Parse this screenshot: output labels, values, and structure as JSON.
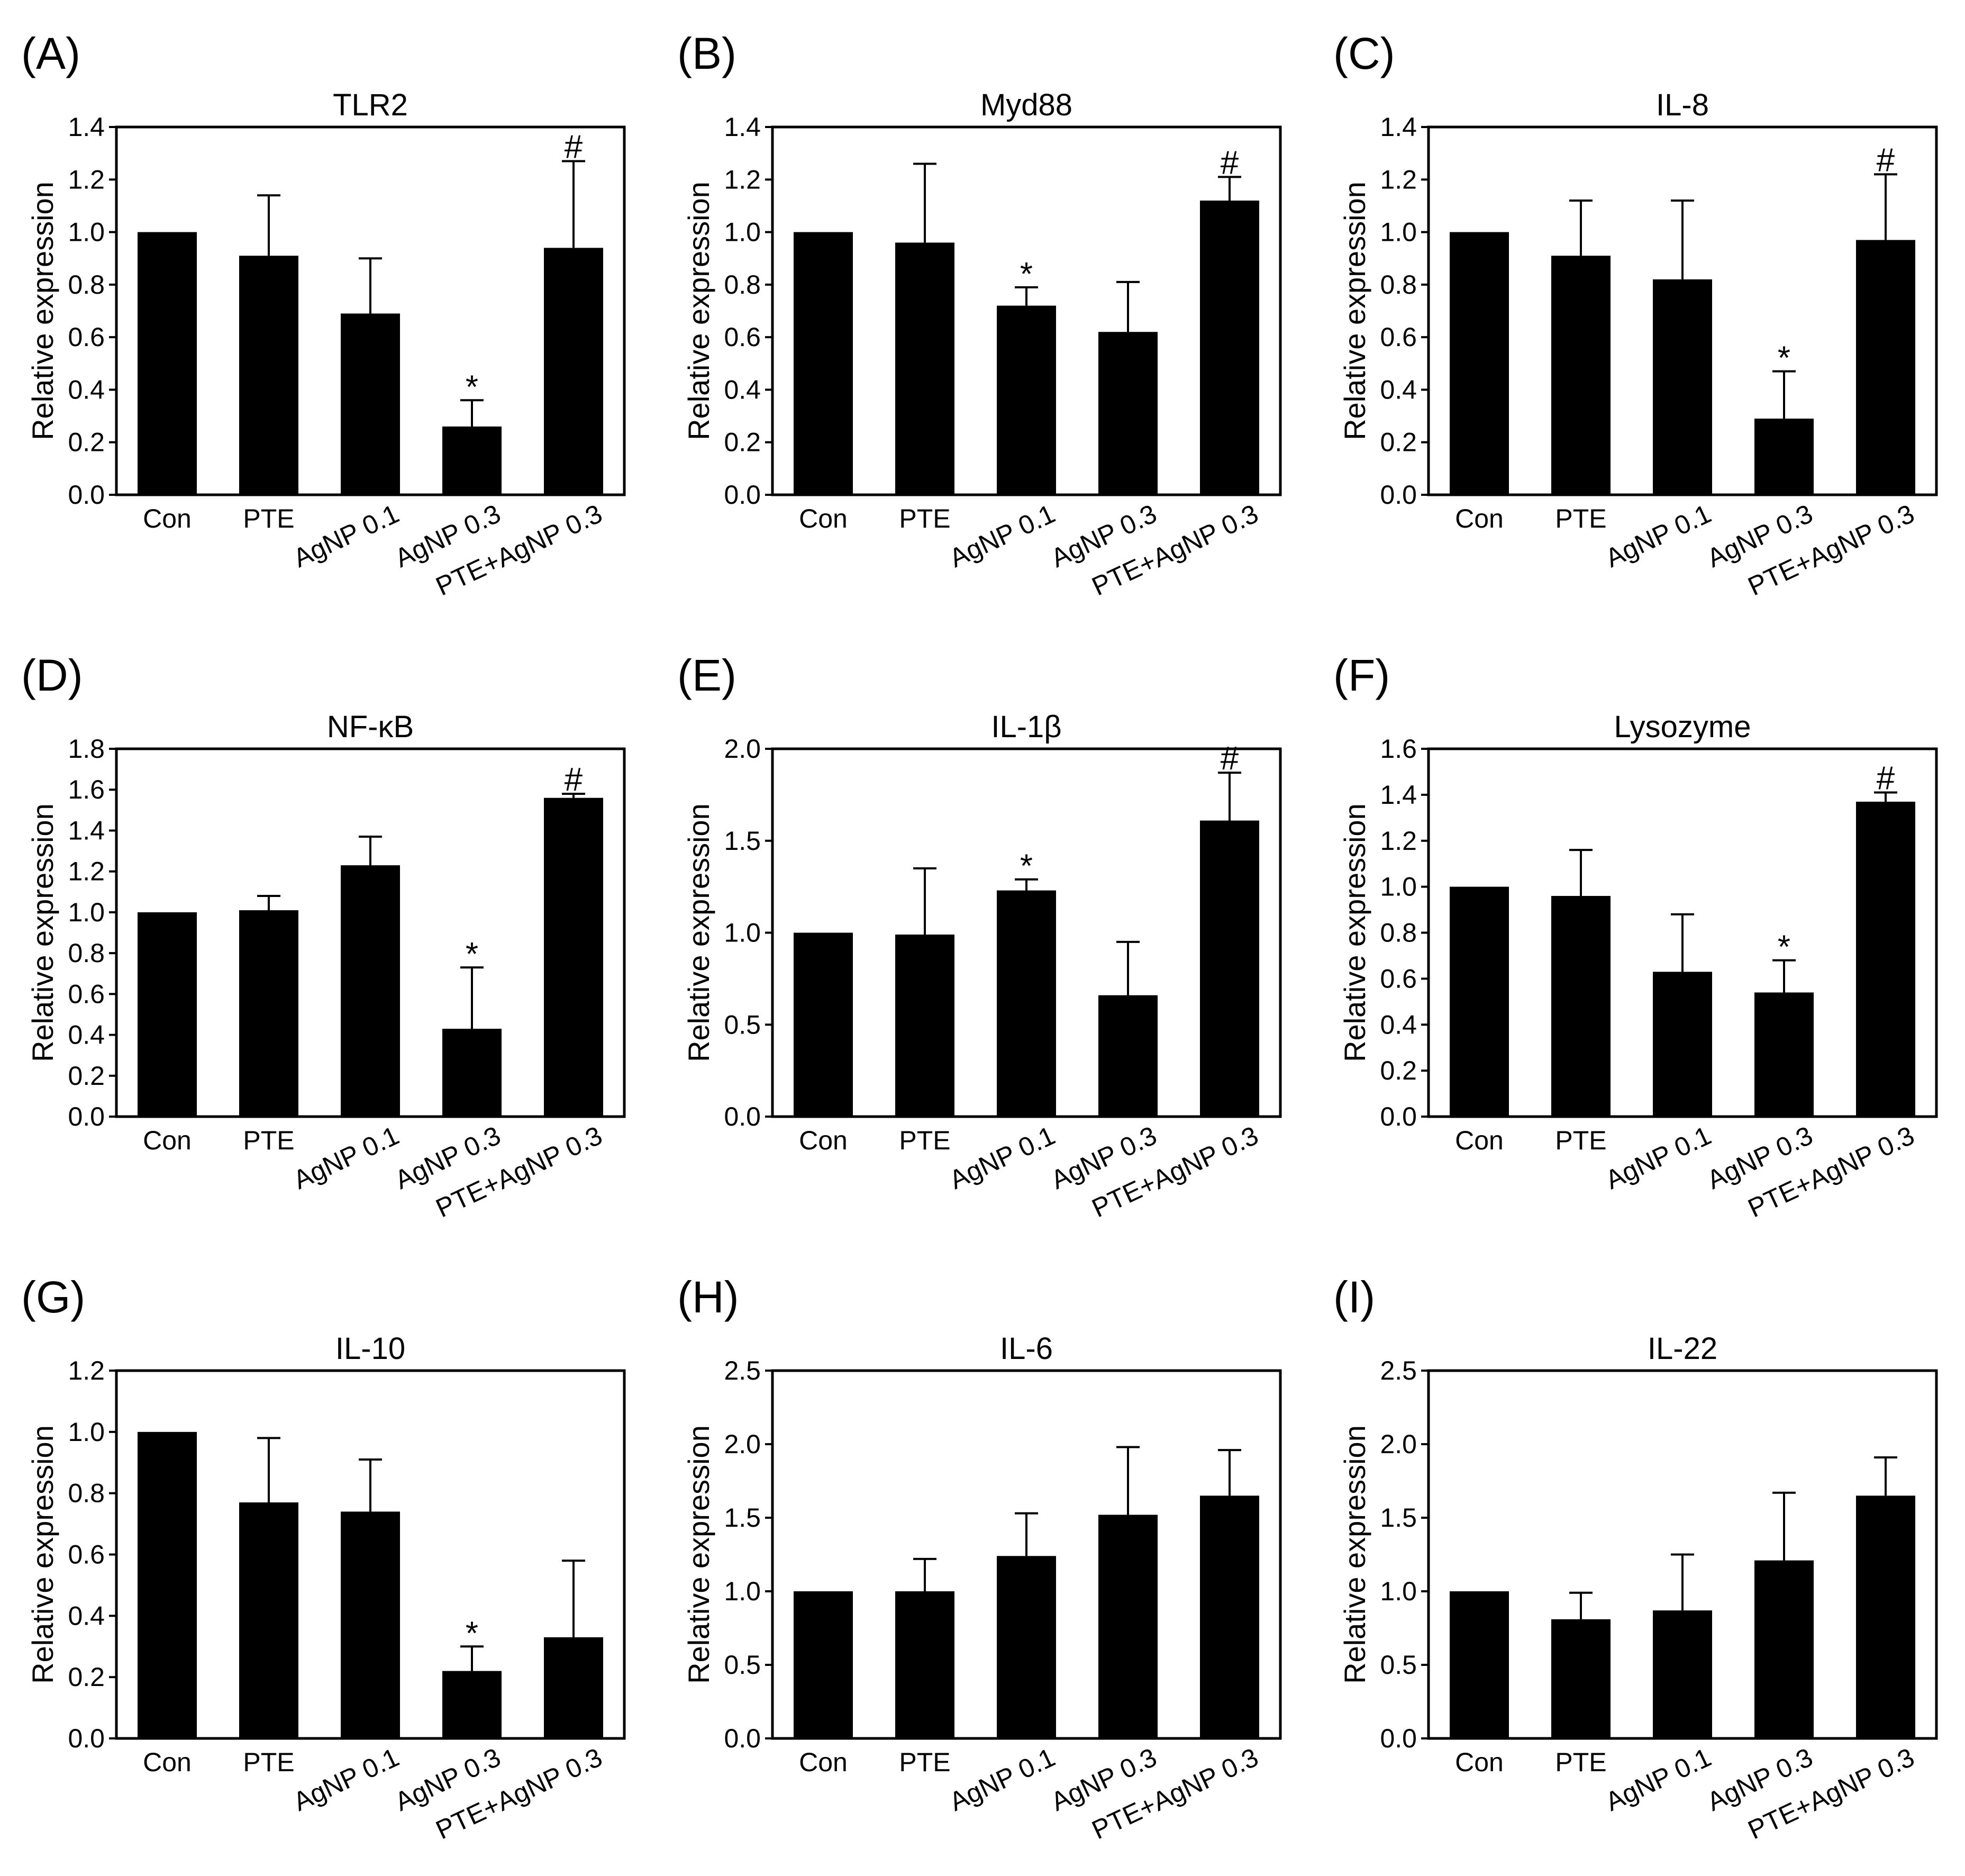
{
  "chart_data": [
    {
      "label": "(A)",
      "type": "bar",
      "title": "TLR2",
      "ylabel": "Relative expression",
      "ylim": [
        0,
        1.4
      ],
      "yticks": [
        "0.0",
        "0.2",
        "0.4",
        "0.6",
        "0.8",
        "1.0",
        "1.2",
        "1.4"
      ],
      "categories": [
        "Con",
        "PTE",
        "AgNP 0.1",
        "AgNP 0.3",
        "PTE+AgNP 0.3"
      ],
      "values": [
        1.0,
        0.91,
        0.69,
        0.26,
        0.94
      ],
      "errors": [
        0,
        0.23,
        0.21,
        0.1,
        0.33
      ],
      "marks": [
        "",
        "",
        "",
        "*",
        "#"
      ]
    },
    {
      "label": "(B)",
      "type": "bar",
      "title": "Myd88",
      "ylabel": "Relative expression",
      "ylim": [
        0,
        1.4
      ],
      "yticks": [
        "0.0",
        "0.2",
        "0.4",
        "0.6",
        "0.8",
        "1.0",
        "1.2",
        "1.4"
      ],
      "categories": [
        "Con",
        "PTE",
        "AgNP 0.1",
        "AgNP 0.3",
        "PTE+AgNP 0.3"
      ],
      "values": [
        1.0,
        0.96,
        0.72,
        0.62,
        1.12
      ],
      "errors": [
        0,
        0.3,
        0.07,
        0.19,
        0.09
      ],
      "marks": [
        "",
        "",
        "*",
        "",
        "#"
      ]
    },
    {
      "label": "(C)",
      "type": "bar",
      "title": "IL-8",
      "ylabel": "Relative expression",
      "ylim": [
        0,
        1.4
      ],
      "yticks": [
        "0.0",
        "0.2",
        "0.4",
        "0.6",
        "0.8",
        "1.0",
        "1.2",
        "1.4"
      ],
      "categories": [
        "Con",
        "PTE",
        "AgNP 0.1",
        "AgNP 0.3",
        "PTE+AgNP 0.3"
      ],
      "values": [
        1.0,
        0.91,
        0.82,
        0.29,
        0.97
      ],
      "errors": [
        0,
        0.21,
        0.3,
        0.18,
        0.25
      ],
      "marks": [
        "",
        "",
        "",
        "*",
        "#"
      ]
    },
    {
      "label": "(D)",
      "type": "bar",
      "title": "NF-κB",
      "ylabel": "Relative expression",
      "ylim": [
        0,
        1.8
      ],
      "yticks": [
        "0.0",
        "0.2",
        "0.4",
        "0.6",
        "0.8",
        "1.0",
        "1.2",
        "1.4",
        "1.6",
        "1.8"
      ],
      "categories": [
        "Con",
        "PTE",
        "AgNP 0.1",
        "AgNP 0.3",
        "PTE+AgNP 0.3"
      ],
      "values": [
        1.0,
        1.01,
        1.23,
        0.43,
        1.56
      ],
      "errors": [
        0,
        0.07,
        0.14,
        0.3,
        0.02
      ],
      "marks": [
        "",
        "",
        "",
        "*",
        "#"
      ]
    },
    {
      "label": "(E)",
      "type": "bar",
      "title": "IL-1β",
      "ylabel": "Relative expression",
      "ylim": [
        0,
        2.0
      ],
      "yticks": [
        "0.0",
        "0.5",
        "1.0",
        "1.5",
        "2.0"
      ],
      "categories": [
        "Con",
        "PTE",
        "AgNP 0.1",
        "AgNP 0.3",
        "PTE+AgNP 0.3"
      ],
      "values": [
        1.0,
        0.99,
        1.23,
        0.66,
        1.61
      ],
      "errors": [
        0,
        0.36,
        0.06,
        0.29,
        0.26
      ],
      "marks": [
        "",
        "",
        "*",
        "",
        "#"
      ]
    },
    {
      "label": "(F)",
      "type": "bar",
      "title": "Lysozyme",
      "ylabel": "Relative expression",
      "ylim": [
        0,
        1.6
      ],
      "yticks": [
        "0.0",
        "0.2",
        "0.4",
        "0.6",
        "0.8",
        "1.0",
        "1.2",
        "1.4",
        "1.6"
      ],
      "categories": [
        "Con",
        "PTE",
        "AgNP 0.1",
        "AgNP 0.3",
        "PTE+AgNP 0.3"
      ],
      "values": [
        1.0,
        0.96,
        0.63,
        0.54,
        1.37
      ],
      "errors": [
        0,
        0.2,
        0.25,
        0.14,
        0.04
      ],
      "marks": [
        "",
        "",
        "",
        "*",
        "#"
      ]
    },
    {
      "label": "(G)",
      "type": "bar",
      "title": "IL-10",
      "ylabel": "Relative expression",
      "ylim": [
        0,
        1.2
      ],
      "yticks": [
        "0.0",
        "0.2",
        "0.4",
        "0.6",
        "0.8",
        "1.0",
        "1.2"
      ],
      "categories": [
        "Con",
        "PTE",
        "AgNP 0.1",
        "AgNP 0.3",
        "PTE+AgNP 0.3"
      ],
      "values": [
        1.0,
        0.77,
        0.74,
        0.22,
        0.33
      ],
      "errors": [
        0,
        0.21,
        0.17,
        0.08,
        0.25
      ],
      "marks": [
        "",
        "",
        "",
        "*",
        ""
      ]
    },
    {
      "label": "(H)",
      "type": "bar",
      "title": "IL-6",
      "ylabel": "Relative expression",
      "ylim": [
        0,
        2.5
      ],
      "yticks": [
        "0.0",
        "0.5",
        "1.0",
        "1.5",
        "2.0",
        "2.5"
      ],
      "categories": [
        "Con",
        "PTE",
        "AgNP 0.1",
        "AgNP 0.3",
        "PTE+AgNP 0.3"
      ],
      "values": [
        1.0,
        1.0,
        1.24,
        1.52,
        1.65
      ],
      "errors": [
        0,
        0.22,
        0.29,
        0.46,
        0.31
      ],
      "marks": [
        "",
        "",
        "",
        "",
        ""
      ]
    },
    {
      "label": "(I)",
      "type": "bar",
      "title": "IL-22",
      "ylabel": "Relative expression",
      "ylim": [
        0,
        2.5
      ],
      "yticks": [
        "0.0",
        "0.5",
        "1.0",
        "1.5",
        "2.0",
        "2.5"
      ],
      "categories": [
        "Con",
        "PTE",
        "AgNP 0.1",
        "AgNP 0.3",
        "PTE+AgNP 0.3"
      ],
      "values": [
        1.0,
        0.81,
        0.87,
        1.21,
        1.65
      ],
      "errors": [
        0,
        0.18,
        0.38,
        0.46,
        0.26
      ],
      "marks": [
        "",
        "",
        "",
        "",
        ""
      ]
    }
  ]
}
